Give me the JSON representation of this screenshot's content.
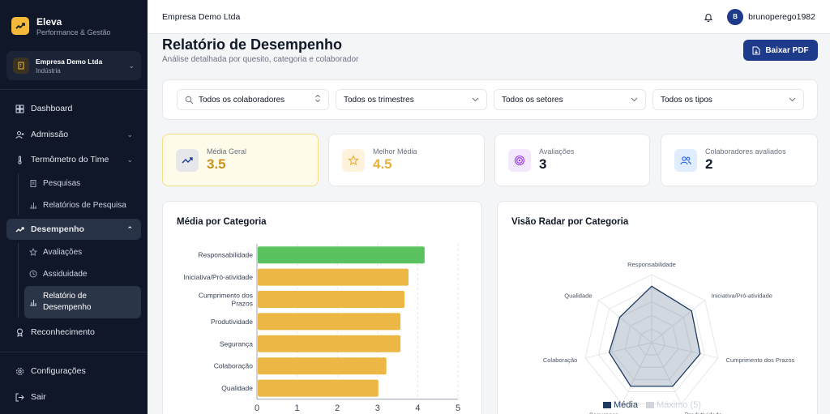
{
  "sidebar": {
    "brand_name": "Eleva",
    "brand_sub": "Performance & Gestão",
    "company_name": "Empresa Demo Ltda",
    "company_type": "Indústria",
    "items": [
      {
        "label": "Dashboard"
      },
      {
        "label": "Admissão"
      },
      {
        "label": "Termômetro do Time"
      },
      {
        "label": "Pesquisas"
      },
      {
        "label": "Relatórios de Pesquisa"
      },
      {
        "label": "Desempenho"
      },
      {
        "label": "Avaliações"
      },
      {
        "label": "Assiduidade"
      },
      {
        "label": "Relatório de Desempenho"
      },
      {
        "label": "Reconhecimento"
      },
      {
        "label": "Configurações"
      },
      {
        "label": "Sair"
      }
    ]
  },
  "topbar": {
    "title": "Empresa Demo Ltda",
    "avatar_initial": "B",
    "username": "bruno​perego1982"
  },
  "header": {
    "title": "Relatório de Desempenho",
    "subtitle": "Análise detalhada por quesito, categoria e colaborador",
    "download_label": "Baixar PDF"
  },
  "filters": {
    "collaborator": "Todos os colaboradores",
    "quarter": "Todos os trimestres",
    "sector": "Todos os setores",
    "type": "Todos os tipos"
  },
  "stats": [
    {
      "label": "Média Geral",
      "value": "3.5",
      "color": "#c8941f"
    },
    {
      "label": "Melhor Média",
      "value": "4.5",
      "color": "#e8b33c"
    },
    {
      "label": "Avaliações",
      "value": "3",
      "color": "#111827"
    },
    {
      "label": "Colaboradores avaliados",
      "value": "2",
      "color": "#111827"
    }
  ],
  "bar_panel": {
    "title": "Média por Categoria"
  },
  "radar_panel": {
    "title": "Visão Radar por Categoria",
    "legend_media": "Média",
    "legend_max": "Máximo (5)"
  },
  "chart_data": [
    {
      "type": "bar",
      "orientation": "horizontal",
      "title": "Média por Categoria",
      "categories": [
        "Responsabilidade",
        "Iniciativa/Pró-atividade",
        "Cumprimento dos Prazos",
        "Produtividade",
        "Segurança",
        "Colaboração",
        "Qualidade"
      ],
      "values": [
        4.15,
        3.75,
        3.65,
        3.55,
        3.55,
        3.2,
        3.0
      ],
      "colors": [
        "#5ac35f",
        "#ecb745",
        "#ecb745",
        "#ecb745",
        "#ecb745",
        "#ecb745",
        "#ecb745"
      ],
      "xlim": [
        0,
        5
      ],
      "xticks": [
        "0",
        "1",
        "2",
        "3",
        "4",
        "5"
      ],
      "grid": true
    },
    {
      "type": "radar",
      "title": "Visão Radar por Categoria",
      "categories": [
        "Responsabilidade",
        "Iniciativa/Pró-atividade",
        "Cumprimento dos Prazos",
        "Produtividade",
        "Segurança",
        "Colaboração",
        "Qualidade"
      ],
      "series": [
        {
          "name": "Média",
          "values": [
            4.15,
            3.75,
            3.65,
            3.55,
            3.55,
            3.2,
            3.0
          ],
          "color": "#1e3a5f"
        },
        {
          "name": "Máximo (5)",
          "values": [
            5,
            5,
            5,
            5,
            5,
            5,
            5
          ],
          "color": "#cbd5e1"
        }
      ],
      "rlim": [
        0,
        5
      ]
    }
  ]
}
